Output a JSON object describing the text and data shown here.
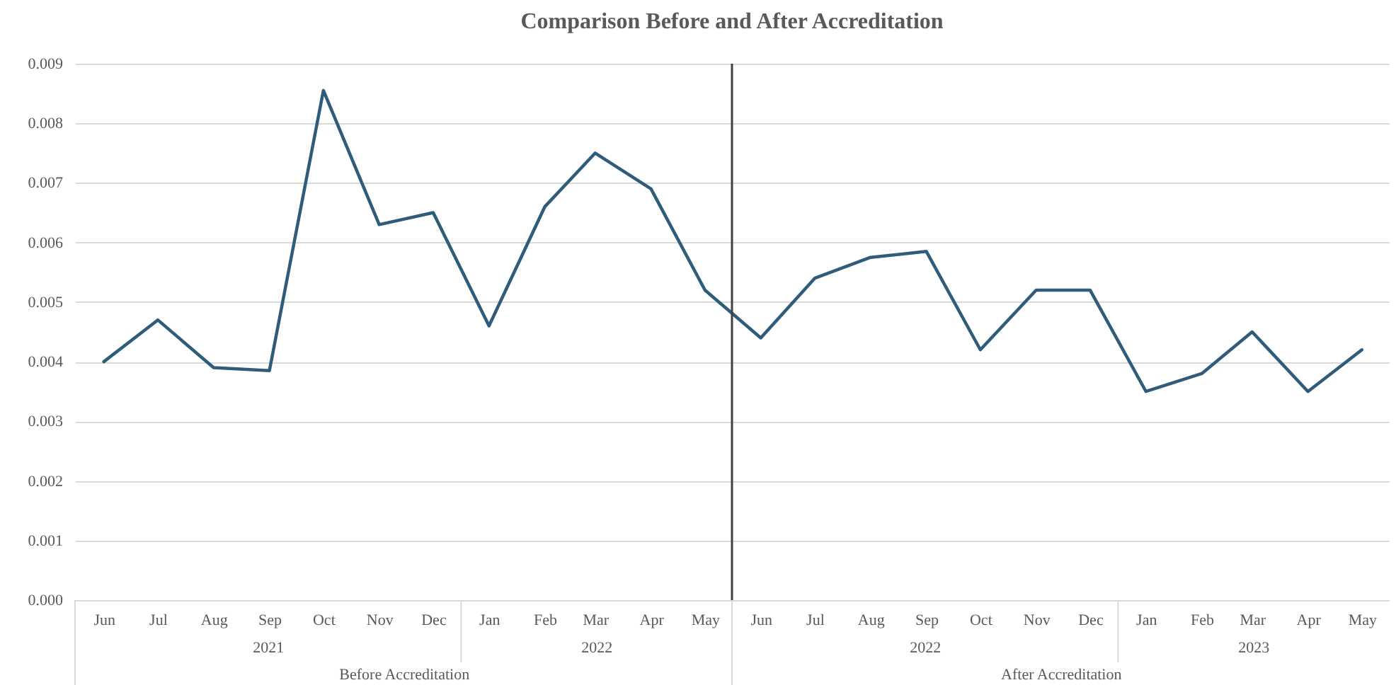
{
  "chart_data": {
    "type": "line",
    "title": "Comparison Before and After Accreditation",
    "x": [
      "2021-06",
      "2021-07",
      "2021-08",
      "2021-09",
      "2021-10",
      "2021-11",
      "2021-12",
      "2022-01",
      "2022-02",
      "2022-03",
      "2022-04",
      "2022-05",
      "2022-06",
      "2022-07",
      "2022-08",
      "2022-09",
      "2022-10",
      "2022-11",
      "2022-12",
      "2023-01",
      "2023-02",
      "2023-03",
      "2023-04",
      "2023-05"
    ],
    "values": [
      0.004,
      0.0047,
      0.0039,
      0.00385,
      0.00855,
      0.0063,
      0.0065,
      0.0046,
      0.0066,
      0.0075,
      0.0069,
      0.0052,
      0.0044,
      0.0054,
      0.00575,
      0.00585,
      0.0042,
      0.0052,
      0.0052,
      0.0035,
      0.0038,
      0.0045,
      0.0035,
      0.0042
    ],
    "color": "#2e5c7a",
    "xlim": [
      "2021-05-16",
      "2023-05-16"
    ],
    "xticks": [
      {
        "value": "2021-06",
        "label": "Jun"
      },
      {
        "value": "2021-07",
        "label": "Jul"
      },
      {
        "value": "2021-08",
        "label": "Aug"
      },
      {
        "value": "2021-09",
        "label": "Sep"
      },
      {
        "value": "2021-10",
        "label": "Oct"
      },
      {
        "value": "2021-11",
        "label": "Nov"
      },
      {
        "value": "2021-12",
        "label": "Dec"
      },
      {
        "value": "2022-01",
        "label": "Jan"
      },
      {
        "value": "2022-02",
        "label": "Feb"
      },
      {
        "value": "2022-03",
        "label": "Mar"
      },
      {
        "value": "2022-04",
        "label": "Apr"
      },
      {
        "value": "2022-05",
        "label": "May"
      },
      {
        "value": "2022-06",
        "label": "Jun"
      },
      {
        "value": "2022-07",
        "label": "Jul"
      },
      {
        "value": "2022-08",
        "label": "Aug"
      },
      {
        "value": "2022-09",
        "label": "Sep"
      },
      {
        "value": "2022-10",
        "label": "Oct"
      },
      {
        "value": "2022-11",
        "label": "Nov"
      },
      {
        "value": "2022-12",
        "label": "Dec"
      },
      {
        "value": "2023-01",
        "label": "Jan"
      },
      {
        "value": "2023-02",
        "label": "Feb"
      },
      {
        "value": "2023-03",
        "label": "Mar"
      },
      {
        "value": "2023-04",
        "label": "Apr"
      },
      {
        "value": "2023-05",
        "label": "May"
      }
    ],
    "ylim": [
      0,
      0.009
    ],
    "yticks": [
      {
        "value": 0,
        "label": "0.000"
      },
      0.001,
      0.002,
      0.003,
      0.004,
      0.005,
      0.006,
      0.007,
      0.008,
      0.009
    ],
    "grid": "y",
    "ref_lines": [
      {
        "axis": "x",
        "value": "2022-05-16",
        "color": "#404040"
      }
    ],
    "annotations": [
      "2021",
      "2022",
      "2022",
      "2023",
      "Before Accreditation",
      "After Accreditation"
    ]
  }
}
